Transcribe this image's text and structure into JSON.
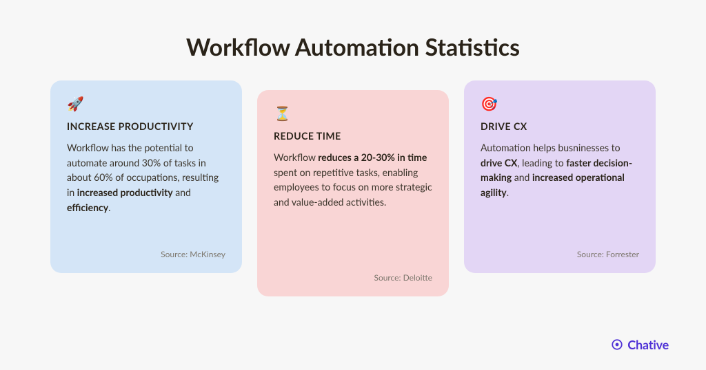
{
  "title": "Workflow Automation Statistics",
  "title_color": "#2a2319",
  "title_fontsize": 34,
  "background_color": "#f7f7f7",
  "cards": [
    {
      "icon": "🚀",
      "icon_name": "rocket-icon",
      "background_color": "#d4e5f7",
      "title": "INCREASE PRODUCTIVITY",
      "body_html": "Workflow has the potential to automate around 30% of tasks in about 60% of occupations, resulting in <b>increased productivity</b> and <b>efficiency</b>.",
      "source": "Source: McKinsey"
    },
    {
      "icon": "⏳",
      "icon_name": "hourglass-icon",
      "background_color": "#f9d5d5",
      "title": "REDUCE TIME",
      "body_html": "Workflow <b>reduces a 20-30% in time</b> spent on repetitive tasks, enabling employees to focus on more strategic and value-added activities.",
      "source": "Source: Deloitte"
    },
    {
      "icon": "🎯",
      "icon_name": "target-icon",
      "background_color": "#e3d6f5",
      "title": "DRIVE CX",
      "body_html": "Automation helps busninesses to <b>drive CX</b>, leading to <b>faster decision-making</b> and <b>increased operational agility</b>.",
      "source": "Source: Forrester"
    }
  ],
  "card_title_fontsize": 14,
  "card_body_fontsize": 14,
  "card_source_fontsize": 12,
  "card_source_color": "#7d776d",
  "card_border_radius": 16,
  "brand": {
    "name": "Chative",
    "color": "#5033d6",
    "icon_color": "#5033d6"
  }
}
